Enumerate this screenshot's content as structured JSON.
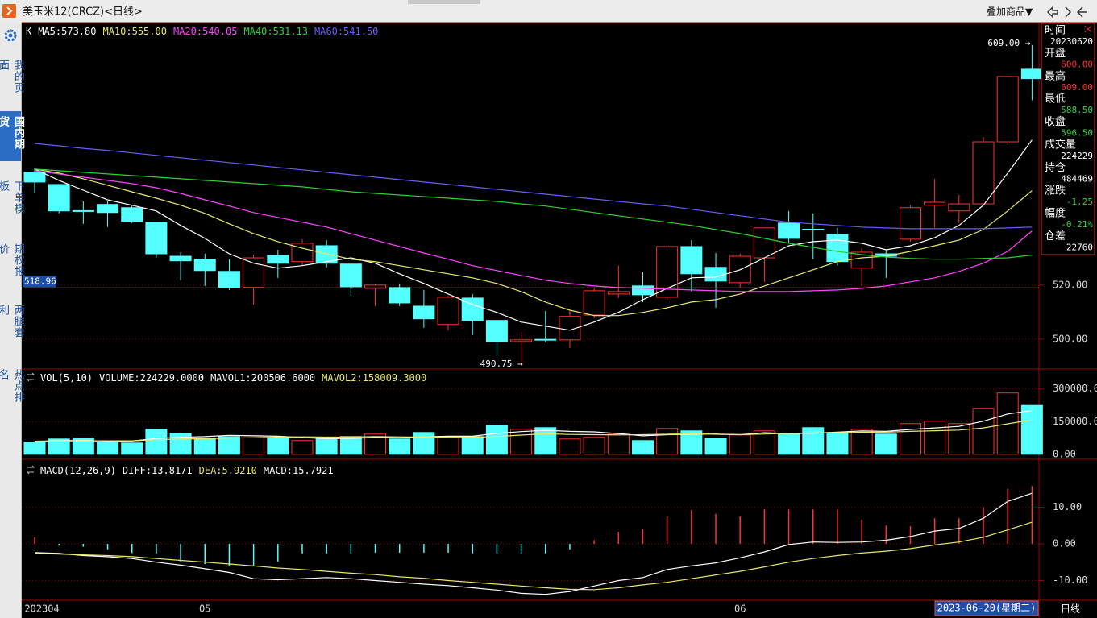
{
  "window": {
    "title": "美玉米12(CRCZ)<日线>",
    "overlay_button": "叠加商品▼",
    "period": "日线"
  },
  "sidebar": {
    "items": [
      "我的页面",
      "国内期货",
      "下单模板",
      "期权报价",
      "两腿套利",
      "热点排名"
    ],
    "active": 1
  },
  "info_panel": {
    "rows": [
      {
        "label": "时间",
        "value": "20230620",
        "value_color": "#ffffff"
      },
      {
        "label": "开盘",
        "value": "600.00",
        "value_color": "#ff3232"
      },
      {
        "label": "最高",
        "value": "609.00",
        "value_color": "#ff3232"
      },
      {
        "label": "最低",
        "value": "588.50",
        "value_color": "#32d232"
      },
      {
        "label": "收盘",
        "value": "596.50",
        "value_color": "#32d232"
      },
      {
        "label": "成交量",
        "value": "224229",
        "value_color": "#ffffff"
      },
      {
        "label": "持仓",
        "value": "484469",
        "value_color": "#ffffff"
      },
      {
        "label": "涨跌",
        "value": "-1.25",
        "value_color": "#32d232"
      },
      {
        "label": "幅度",
        "value": "-0.21%",
        "value_color": "#32d232"
      },
      {
        "label": "仓差",
        "value": "22760",
        "value_color": "#ffffff"
      }
    ]
  },
  "chart_data": [
    {
      "type": "candlestick",
      "indicator": "K",
      "categories": [
        "202304",
        null,
        null,
        null,
        null,
        null,
        null,
        "05",
        null,
        null,
        null,
        null,
        null,
        null,
        null,
        null,
        null,
        null,
        null,
        null,
        null,
        null,
        null,
        null,
        null,
        null,
        null,
        null,
        null,
        "06",
        null,
        null,
        null,
        null,
        null,
        null,
        null,
        null,
        null,
        null,
        null,
        null
      ],
      "cursor_date": "2023-06-20(星期二)",
      "open": [
        561.8,
        557.3,
        547.6,
        549.9,
        548.7,
        543.3,
        530.7,
        529.6,
        525.1,
        519.1,
        531.0,
        528.7,
        534.6,
        527.8,
        518.8,
        519.1,
        512.2,
        505.4,
        515.2,
        506.9,
        499.1,
        499.9,
        499.7,
        508.9,
        516.7,
        519.7,
        515.5,
        534.3,
        526.6,
        520.9,
        530.1,
        543.0,
        540.7,
        538.8,
        526.3,
        531.6,
        537.0,
        549.6,
        547.5,
        550.1,
        573.1,
        600.0
      ],
      "high": [
        563.6,
        557.3,
        551.0,
        551.0,
        549.6,
        543.3,
        532.2,
        531.6,
        529.6,
        531.3,
        533.1,
        537.0,
        536.7,
        527.8,
        520.6,
        520.6,
        518.2,
        516.1,
        516.7,
        506.9,
        502.7,
        510.4,
        510.4,
        519.1,
        527.2,
        524.8,
        534.9,
        536.7,
        531.9,
        531.6,
        541.2,
        547.5,
        546.6,
        541.2,
        533.7,
        533.1,
        549.6,
        559.4,
        553.4,
        574.9,
        597.3,
        609.0
      ],
      "low": [
        554.0,
        546.6,
        542.7,
        541.5,
        543.0,
        530.1,
        521.8,
        519.7,
        518.2,
        512.8,
        522.7,
        527.2,
        526.6,
        516.1,
        512.2,
        512.2,
        504.2,
        503.3,
        501.5,
        494.0,
        490.75,
        498.8,
        496.7,
        507.8,
        515.2,
        513.7,
        514.6,
        517.6,
        511.6,
        518.8,
        521.2,
        535.5,
        529.6,
        527.2,
        519.7,
        522.7,
        536.1,
        541.2,
        543.0,
        549.3,
        571.9,
        588.5
      ],
      "close": [
        558.2,
        547.5,
        547.4,
        546.9,
        543.6,
        531.6,
        529.0,
        525.4,
        519.1,
        530.1,
        528.1,
        535.5,
        528.1,
        519.4,
        520.0,
        513.4,
        507.5,
        515.5,
        506.9,
        499.1,
        499.7,
        499.7,
        508.4,
        517.9,
        517.6,
        516.4,
        534.3,
        524.2,
        521.5,
        530.7,
        541.2,
        537.3,
        540.5,
        528.7,
        532.2,
        530.7,
        548.7,
        550.7,
        550.1,
        573.1,
        597.3,
        596.5
      ],
      "up_color": "#ff3232",
      "down_color": "#54ffff",
      "lines": [
        {
          "name": "MA5:573.80",
          "color": "#ffffff",
          "values": [
            563.0,
            558.8,
            555.2,
            551.6,
            549.6,
            547.5,
            542.1,
            537.3,
            531.6,
            528.1,
            526.3,
            527.2,
            528.7,
            530.1,
            528.1,
            524.2,
            520.6,
            516.7,
            512.8,
            509.9,
            506.3,
            504.8,
            503.3,
            506.3,
            509.9,
            514.6,
            518.8,
            522.7,
            523.0,
            525.7,
            530.1,
            534.6,
            536.1,
            536.7,
            535.5,
            533.1,
            534.6,
            537.6,
            542.1,
            549.6,
            561.5,
            573.8
          ]
        },
        {
          "name": "MA10:555.00",
          "color": "#e8e870",
          "values": [
            563.0,
            561.5,
            559.4,
            557.0,
            554.6,
            552.2,
            549.6,
            546.6,
            542.7,
            539.1,
            536.1,
            533.7,
            531.6,
            529.6,
            528.7,
            527.2,
            525.7,
            524.2,
            522.7,
            520.6,
            517.6,
            513.7,
            510.7,
            508.7,
            508.7,
            509.9,
            511.6,
            513.7,
            514.6,
            516.7,
            519.7,
            522.7,
            525.7,
            528.7,
            530.1,
            530.7,
            532.5,
            534.6,
            536.7,
            540.6,
            547.5,
            555.0
          ]
        },
        {
          "name": "MA20:540.05",
          "color": "#ff44ff",
          "values": [
            562.4,
            561.2,
            560.0,
            558.8,
            557.6,
            556.1,
            554.0,
            551.6,
            549.3,
            546.9,
            545.1,
            543.3,
            541.5,
            539.1,
            536.7,
            534.3,
            531.9,
            529.6,
            527.2,
            525.4,
            523.6,
            521.8,
            520.6,
            519.7,
            519.1,
            518.8,
            518.5,
            518.2,
            517.9,
            517.6,
            517.6,
            517.6,
            517.9,
            518.2,
            518.8,
            519.7,
            521.2,
            522.7,
            525.1,
            528.1,
            532.5,
            540.05
          ]
        },
        {
          "name": "MA40:531.13",
          "color": "#30d030",
          "values": [
            563.0,
            562.4,
            561.8,
            561.2,
            560.6,
            560.0,
            559.4,
            558.8,
            558.2,
            557.6,
            557.0,
            556.4,
            555.5,
            554.6,
            554.0,
            553.4,
            552.8,
            552.2,
            551.6,
            551.0,
            550.1,
            549.3,
            548.1,
            546.9,
            545.7,
            544.5,
            543.3,
            542.1,
            540.6,
            539.1,
            537.3,
            535.5,
            534.0,
            532.5,
            531.3,
            530.4,
            529.9,
            529.6,
            529.6,
            529.9,
            530.1,
            531.13
          ]
        },
        {
          "name": "MA60:541.50",
          "color": "#6a5cff",
          "values": [
            572.5,
            571.6,
            570.7,
            569.9,
            569.0,
            568.1,
            567.2,
            566.3,
            565.4,
            564.5,
            563.6,
            562.7,
            561.8,
            560.9,
            560.0,
            559.1,
            558.2,
            557.3,
            556.4,
            555.5,
            554.6,
            553.7,
            552.8,
            551.9,
            551.0,
            550.1,
            549.3,
            548.1,
            546.9,
            545.7,
            544.5,
            543.3,
            542.7,
            542.1,
            541.5,
            541.2,
            540.9,
            540.9,
            540.9,
            540.9,
            541.2,
            541.5
          ]
        }
      ],
      "high_label": "609.00 →",
      "low_label": "490.75 →",
      "cursor_value": 518.96,
      "ylim": [
        489.2,
        616.7
      ],
      "yticks": [
        {
          "value": 500,
          "label": "500.00"
        },
        {
          "value": 520,
          "label": "520.00"
        }
      ],
      "grid": true
    },
    {
      "type": "bar",
      "indicator": "VOL(5,10)",
      "value_label": "VOLUME:224229.0000",
      "values": [
        55600,
        70400,
        74100,
        55600,
        51900,
        114800,
        96300,
        70400,
        81500,
        85200,
        77800,
        63000,
        70400,
        81500,
        92600,
        70400,
        100000,
        77800,
        81500,
        133300,
        114800,
        122200,
        70400,
        77800,
        92600,
        63000,
        118500,
        107400,
        74100,
        88900,
        107400,
        92600,
        122200,
        100000,
        114800,
        92600,
        140700,
        151900,
        140700,
        211100,
        281500,
        224229
      ],
      "lines": [
        {
          "name": "MAVOL1:200506.6000",
          "color": "#ffffff",
          "values": [
            60000,
            62000,
            64000,
            60000,
            61000,
            73000,
            78000,
            81000,
            87000,
            85000,
            83000,
            77000,
            72000,
            73000,
            77000,
            76000,
            80000,
            83000,
            83000,
            96000,
            104000,
            110000,
            105000,
            103000,
            95000,
            85000,
            90000,
            92000,
            93000,
            90000,
            99000,
            95000,
            97000,
            102000,
            107000,
            105000,
            114000,
            121000,
            128000,
            152000,
            185000,
            200506.6
          ]
        },
        {
          "name": "MAVOL2:158009.3000",
          "color": "#e8e870",
          "values": [
            60000,
            61000,
            62000,
            62000,
            62000,
            67000,
            70000,
            72000,
            75000,
            76000,
            79000,
            80000,
            79000,
            79000,
            81000,
            80000,
            79000,
            78000,
            78000,
            82000,
            88000,
            94000,
            91000,
            90000,
            89000,
            90000,
            92000,
            94000,
            92000,
            90000,
            93000,
            96000,
            98000,
            99000,
            101000,
            102000,
            105000,
            108000,
            111000,
            121000,
            140000,
            158009.3
          ]
        }
      ],
      "ylim": [
        -8000,
        384000
      ],
      "yticks": [
        {
          "value": 0,
          "label": "0.00"
        },
        {
          "value": 150000,
          "label": "150000.00"
        },
        {
          "value": 300000,
          "label": "300000.00"
        }
      ],
      "grid": true
    },
    {
      "type": "macd",
      "indicator": "MACD(12,26,9)",
      "value_label": "MACD:15.7921",
      "values": [
        1.8,
        -0.5,
        -0.8,
        -1.5,
        -2.5,
        -2.6,
        -4.8,
        -5.5,
        -6,
        -6,
        -4.8,
        -2.6,
        -2.6,
        -2.6,
        -2.4,
        -2.4,
        -2.4,
        -2.4,
        -2.6,
        -2.6,
        -2.6,
        -2.6,
        -1.5,
        1,
        3.3,
        4,
        7.5,
        9.2,
        8.2,
        7.5,
        9.4,
        9.4,
        9.4,
        9.4,
        6.6,
        5,
        4.8,
        7,
        7,
        10,
        15,
        15.7921
      ],
      "up_color": "#ff3232",
      "down_color": "#54ffff",
      "lines": [
        {
          "name": "DIFF:13.8171",
          "color": "#ffffff",
          "values": [
            -2.4,
            -2.6,
            -3.2,
            -3.5,
            -4,
            -5,
            -5.8,
            -6.8,
            -7.8,
            -9.5,
            -9.8,
            -9.5,
            -9.2,
            -9.5,
            -10,
            -10.5,
            -11,
            -11.4,
            -12,
            -12.6,
            -13.5,
            -13.8,
            -13,
            -11.5,
            -10,
            -9.2,
            -7,
            -6,
            -5.2,
            -3.8,
            -2.2,
            -0.2,
            0.5,
            0.4,
            0.5,
            1,
            2,
            3.5,
            4.2,
            7,
            11.6,
            13.8171
          ]
        },
        {
          "name": "DEA:5.9210",
          "color": "#e8e870",
          "values": [
            -2.6,
            -2.8,
            -3,
            -3.2,
            -3.5,
            -4,
            -4.5,
            -5,
            -5.5,
            -6,
            -6.6,
            -7,
            -7.5,
            -8,
            -8.4,
            -9,
            -9.4,
            -10,
            -10.5,
            -11,
            -11.5,
            -12,
            -12.4,
            -12.5,
            -12,
            -11.2,
            -10.5,
            -9.5,
            -8.5,
            -7.5,
            -6.3,
            -5,
            -4,
            -3.2,
            -2.5,
            -2,
            -1.3,
            -0.3,
            0.5,
            1.8,
            3.8,
            5.921
          ]
        }
      ],
      "ylim": [
        -15.4,
        22
      ],
      "yticks": [
        {
          "value": -10,
          "label": "-10.00"
        },
        {
          "value": 0,
          "label": "0.00"
        },
        {
          "value": 10,
          "label": "10.00"
        }
      ],
      "grid": true
    }
  ]
}
